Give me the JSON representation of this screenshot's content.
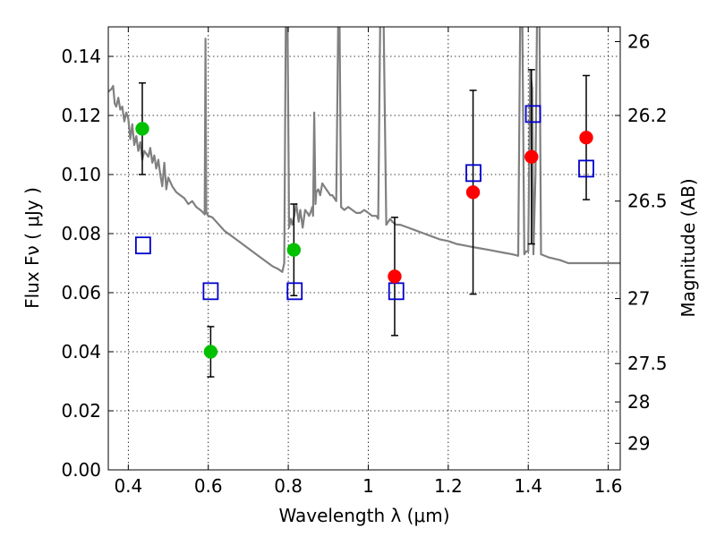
{
  "chart_data": {
    "type": "scatter",
    "xlabel": "Wavelength  λ (μm)",
    "ylabel": "Flux  Fν  ( μJy )",
    "y2label": "Magnitude (AB)",
    "xlim": [
      0.35,
      1.63
    ],
    "ylim": [
      0.0,
      0.15
    ],
    "xticks": [
      {
        "value": 0.4,
        "label": "0.4"
      },
      {
        "value": 0.6,
        "label": "0.6"
      },
      {
        "value": 0.8,
        "label": "0.8"
      },
      {
        "value": 1.0,
        "label": "1"
      },
      {
        "value": 1.2,
        "label": "1.2"
      },
      {
        "value": 1.4,
        "label": "1.4"
      },
      {
        "value": 1.6,
        "label": "1.6"
      }
    ],
    "yticks": [
      {
        "value": 0.0,
        "label": "0.00"
      },
      {
        "value": 0.02,
        "label": "0.02"
      },
      {
        "value": 0.04,
        "label": "0.04"
      },
      {
        "value": 0.06,
        "label": "0.06"
      },
      {
        "value": 0.08,
        "label": "0.08"
      },
      {
        "value": 0.1,
        "label": "0.10"
      },
      {
        "value": 0.12,
        "label": "0.12"
      },
      {
        "value": 0.14,
        "label": "0.14"
      }
    ],
    "y2ticks": [
      {
        "flux": 0.145,
        "label": "26"
      },
      {
        "flux": 0.12,
        "label": "26.2"
      },
      {
        "flux": 0.091,
        "label": "26.5"
      },
      {
        "flux": 0.058,
        "label": "27"
      },
      {
        "flux": 0.036,
        "label": "27.5"
      },
      {
        "flux": 0.023,
        "label": "28"
      },
      {
        "flux": 0.009,
        "label": "29"
      }
    ],
    "grid": true,
    "colors": {
      "green": "#00c000",
      "red": "#ff0000",
      "blue": "#0000cc",
      "spectrum": "#808080",
      "errorbar": "#000000"
    },
    "observed_green": [
      {
        "x": 0.435,
        "y": 0.1155,
        "err": 0.0155
      },
      {
        "x": 0.606,
        "y": 0.04,
        "err": 0.0085
      },
      {
        "x": 0.814,
        "y": 0.0745,
        "err": 0.0155
      }
    ],
    "observed_red": [
      {
        "x": 1.066,
        "y": 0.0655,
        "err": 0.02
      },
      {
        "x": 1.262,
        "y": 0.094,
        "err": 0.0345
      },
      {
        "x": 1.408,
        "y": 0.106,
        "err": 0.0295
      },
      {
        "x": 1.545,
        "y": 0.1125,
        "err": 0.021
      }
    ],
    "model_squares": [
      {
        "x": 0.437,
        "y": 0.076
      },
      {
        "x": 0.606,
        "y": 0.0605
      },
      {
        "x": 0.816,
        "y": 0.0605
      },
      {
        "x": 1.07,
        "y": 0.0605
      },
      {
        "x": 1.263,
        "y": 0.1005
      },
      {
        "x": 1.412,
        "y": 0.1205
      },
      {
        "x": 1.545,
        "y": 0.102
      }
    ],
    "spectrum": [
      [
        0.35,
        0.128
      ],
      [
        0.358,
        0.129
      ],
      [
        0.362,
        0.13
      ],
      [
        0.366,
        0.124
      ],
      [
        0.37,
        0.123
      ],
      [
        0.375,
        0.126
      ],
      [
        0.38,
        0.122
      ],
      [
        0.385,
        0.123
      ],
      [
        0.39,
        0.118
      ],
      [
        0.395,
        0.121
      ],
      [
        0.4,
        0.119
      ],
      [
        0.405,
        0.112
      ],
      [
        0.41,
        0.117
      ],
      [
        0.415,
        0.11
      ],
      [
        0.42,
        0.113
      ],
      [
        0.425,
        0.108
      ],
      [
        0.43,
        0.111
      ],
      [
        0.435,
        0.105
      ],
      [
        0.44,
        0.108
      ],
      [
        0.445,
        0.107
      ],
      [
        0.45,
        0.106
      ],
      [
        0.455,
        0.109
      ],
      [
        0.46,
        0.104
      ],
      [
        0.465,
        0.1065
      ],
      [
        0.47,
        0.102
      ],
      [
        0.475,
        0.105
      ],
      [
        0.48,
        0.1
      ],
      [
        0.485,
        0.096
      ],
      [
        0.49,
        0.104
      ],
      [
        0.495,
        0.095
      ],
      [
        0.5,
        0.099
      ],
      [
        0.51,
        0.096
      ],
      [
        0.52,
        0.094
      ],
      [
        0.53,
        0.093
      ],
      [
        0.54,
        0.092
      ],
      [
        0.55,
        0.09
      ],
      [
        0.56,
        0.091
      ],
      [
        0.57,
        0.089
      ],
      [
        0.58,
        0.088
      ],
      [
        0.588,
        0.087
      ],
      [
        0.591,
        0.0865
      ],
      [
        0.593,
        0.146
      ],
      [
        0.595,
        0.087
      ],
      [
        0.6,
        0.086
      ],
      [
        0.61,
        0.0855
      ],
      [
        0.62,
        0.084
      ],
      [
        0.64,
        0.081
      ],
      [
        0.66,
        0.079
      ],
      [
        0.68,
        0.077
      ],
      [
        0.7,
        0.075
      ],
      [
        0.72,
        0.073
      ],
      [
        0.74,
        0.071
      ],
      [
        0.76,
        0.069
      ],
      [
        0.775,
        0.068
      ],
      [
        0.785,
        0.067
      ],
      [
        0.79,
        0.07
      ],
      [
        0.794,
        0.155
      ],
      [
        0.798,
        0.155
      ],
      [
        0.802,
        0.082
      ],
      [
        0.806,
        0.085
      ],
      [
        0.81,
        0.083
      ],
      [
        0.815,
        0.086
      ],
      [
        0.82,
        0.09
      ],
      [
        0.826,
        0.084
      ],
      [
        0.83,
        0.088
      ],
      [
        0.836,
        0.082
      ],
      [
        0.842,
        0.088
      ],
      [
        0.848,
        0.087
      ],
      [
        0.852,
        0.086
      ],
      [
        0.858,
        0.088
      ],
      [
        0.86,
        0.089
      ],
      [
        0.862,
        0.086
      ],
      [
        0.865,
        0.121
      ],
      [
        0.868,
        0.09
      ],
      [
        0.87,
        0.094
      ],
      [
        0.875,
        0.095
      ],
      [
        0.88,
        0.093
      ],
      [
        0.885,
        0.097
      ],
      [
        0.89,
        0.096
      ],
      [
        0.895,
        0.095
      ],
      [
        0.9,
        0.094
      ],
      [
        0.905,
        0.093
      ],
      [
        0.91,
        0.093
      ],
      [
        0.915,
        0.092
      ],
      [
        0.92,
        0.091
      ],
      [
        0.925,
        0.155
      ],
      [
        0.928,
        0.155
      ],
      [
        0.932,
        0.089
      ],
      [
        0.94,
        0.088
      ],
      [
        0.95,
        0.089
      ],
      [
        0.96,
        0.088
      ],
      [
        0.97,
        0.087
      ],
      [
        0.98,
        0.087
      ],
      [
        0.99,
        0.088
      ],
      [
        1.0,
        0.087
      ],
      [
        1.01,
        0.086
      ],
      [
        1.02,
        0.086
      ],
      [
        1.025,
        0.085
      ],
      [
        1.03,
        0.155
      ],
      [
        1.038,
        0.155
      ],
      [
        1.045,
        0.083
      ],
      [
        1.05,
        0.084
      ],
      [
        1.055,
        0.085
      ],
      [
        1.06,
        0.084
      ],
      [
        1.07,
        0.083
      ],
      [
        1.08,
        0.083
      ],
      [
        1.1,
        0.082
      ],
      [
        1.12,
        0.081
      ],
      [
        1.14,
        0.08
      ],
      [
        1.16,
        0.079
      ],
      [
        1.18,
        0.078
      ],
      [
        1.2,
        0.0775
      ],
      [
        1.22,
        0.0765
      ],
      [
        1.24,
        0.076
      ],
      [
        1.26,
        0.0755
      ],
      [
        1.28,
        0.075
      ],
      [
        1.3,
        0.0745
      ],
      [
        1.32,
        0.074
      ],
      [
        1.34,
        0.0735
      ],
      [
        1.36,
        0.073
      ],
      [
        1.375,
        0.0725
      ],
      [
        1.38,
        0.155
      ],
      [
        1.385,
        0.155
      ],
      [
        1.39,
        0.073
      ],
      [
        1.395,
        0.074
      ],
      [
        1.4,
        0.074
      ],
      [
        1.405,
        0.135
      ],
      [
        1.41,
        0.129
      ],
      [
        1.413,
        0.073
      ],
      [
        1.418,
        0.1
      ],
      [
        1.422,
        0.155
      ],
      [
        1.428,
        0.155
      ],
      [
        1.432,
        0.073
      ],
      [
        1.45,
        0.072
      ],
      [
        1.48,
        0.071
      ],
      [
        1.5,
        0.07
      ],
      [
        1.52,
        0.07
      ],
      [
        1.54,
        0.07
      ],
      [
        1.56,
        0.07
      ],
      [
        1.58,
        0.07
      ],
      [
        1.6,
        0.07
      ],
      [
        1.63,
        0.07
      ]
    ]
  }
}
